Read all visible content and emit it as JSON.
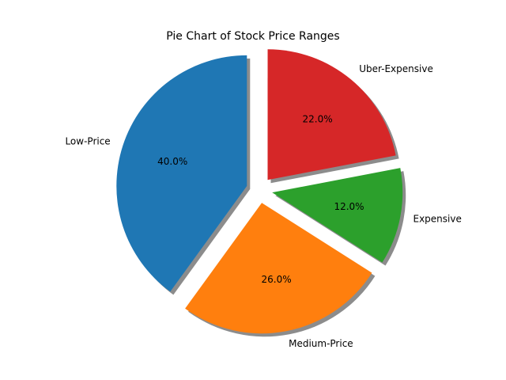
{
  "chart_data": {
    "type": "pie",
    "title": "Pie Chart of Stock Price Ranges",
    "categories": [
      "Low-Price",
      "Medium-Price",
      "Expensive",
      "Uber-Expensive"
    ],
    "values": [
      40.0,
      26.0,
      12.0,
      22.0
    ],
    "percent_labels": [
      "40.0%",
      "26.0%",
      "12.0%",
      "22.0%"
    ],
    "colors": [
      "#1f77b4",
      "#ff7f0e",
      "#2ca02c",
      "#d62728"
    ],
    "exploded": [
      true,
      true,
      true,
      true
    ],
    "start_angle_deg": 90,
    "direction": "counterclockwise",
    "shadow": true
  }
}
